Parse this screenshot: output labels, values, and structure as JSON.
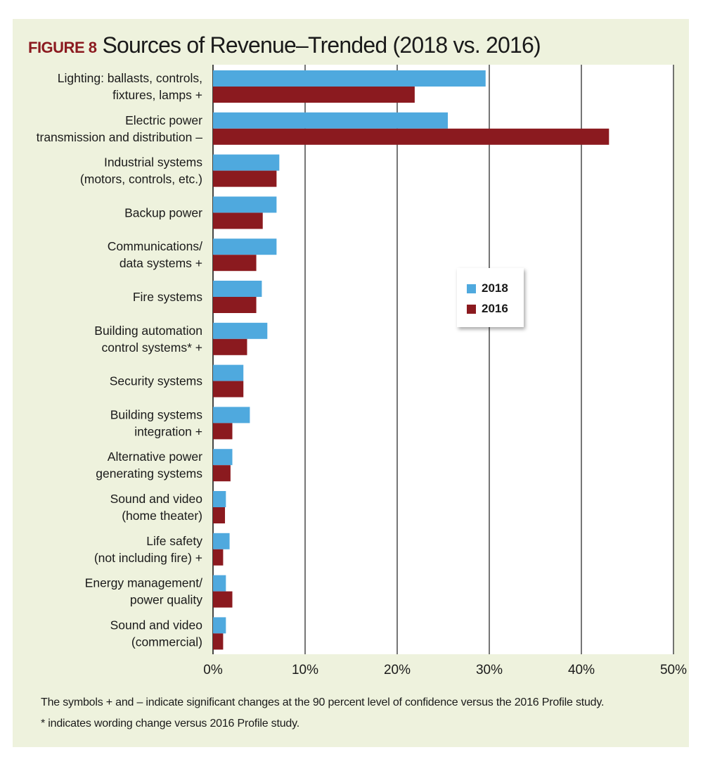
{
  "figure": {
    "label": "FIGURE 8",
    "title": "Sources of Revenue–Trended (2018 vs. 2016)"
  },
  "footnotes": [
    "The symbols + and – indicate significant changes at the 90 percent level of confidence versus the 2016 Profile study.",
    "* indicates wording change versus 2016 Profile study."
  ],
  "colors": {
    "s2018": "#4fa9de",
    "s2016": "#8b1a1f",
    "background": "#eef2dd"
  },
  "chart_data": {
    "type": "bar",
    "orientation": "horizontal",
    "title": "Sources of Revenue–Trended (2018 vs. 2016)",
    "categories": [
      [
        "Lighting: ballasts, controls,",
        "fixtures, lamps +"
      ],
      [
        "Electric power",
        "transmission and distribution –"
      ],
      [
        "Industrial systems",
        "(motors, controls, etc.)"
      ],
      [
        "Backup power"
      ],
      [
        "Communications/",
        "data systems +"
      ],
      [
        "Fire systems"
      ],
      [
        "Building automation",
        "control systems* +"
      ],
      [
        "Security systems"
      ],
      [
        "Building systems",
        "integration +"
      ],
      [
        "Alternative power",
        "generating systems"
      ],
      [
        "Sound and video",
        "(home theater)"
      ],
      [
        "Life safety",
        "(not including fire) +"
      ],
      [
        "Energy management/",
        "power quality"
      ],
      [
        "Sound and video",
        "(commercial)"
      ]
    ],
    "series": [
      {
        "name": "2018",
        "values": [
          29.6,
          25.5,
          7.2,
          6.9,
          6.9,
          5.3,
          5.9,
          3.3,
          4.0,
          2.1,
          1.4,
          1.8,
          1.4,
          1.4
        ]
      },
      {
        "name": "2016",
        "values": [
          21.9,
          43.0,
          6.9,
          5.4,
          4.7,
          4.7,
          3.7,
          3.3,
          2.1,
          1.9,
          1.3,
          1.1,
          2.1,
          1.1
        ]
      }
    ],
    "xlim": [
      0,
      50
    ],
    "xticks": [
      "0%",
      "10%",
      "20%",
      "30%",
      "40%",
      "50%"
    ],
    "grid": true,
    "legend_position": "right-middle"
  }
}
